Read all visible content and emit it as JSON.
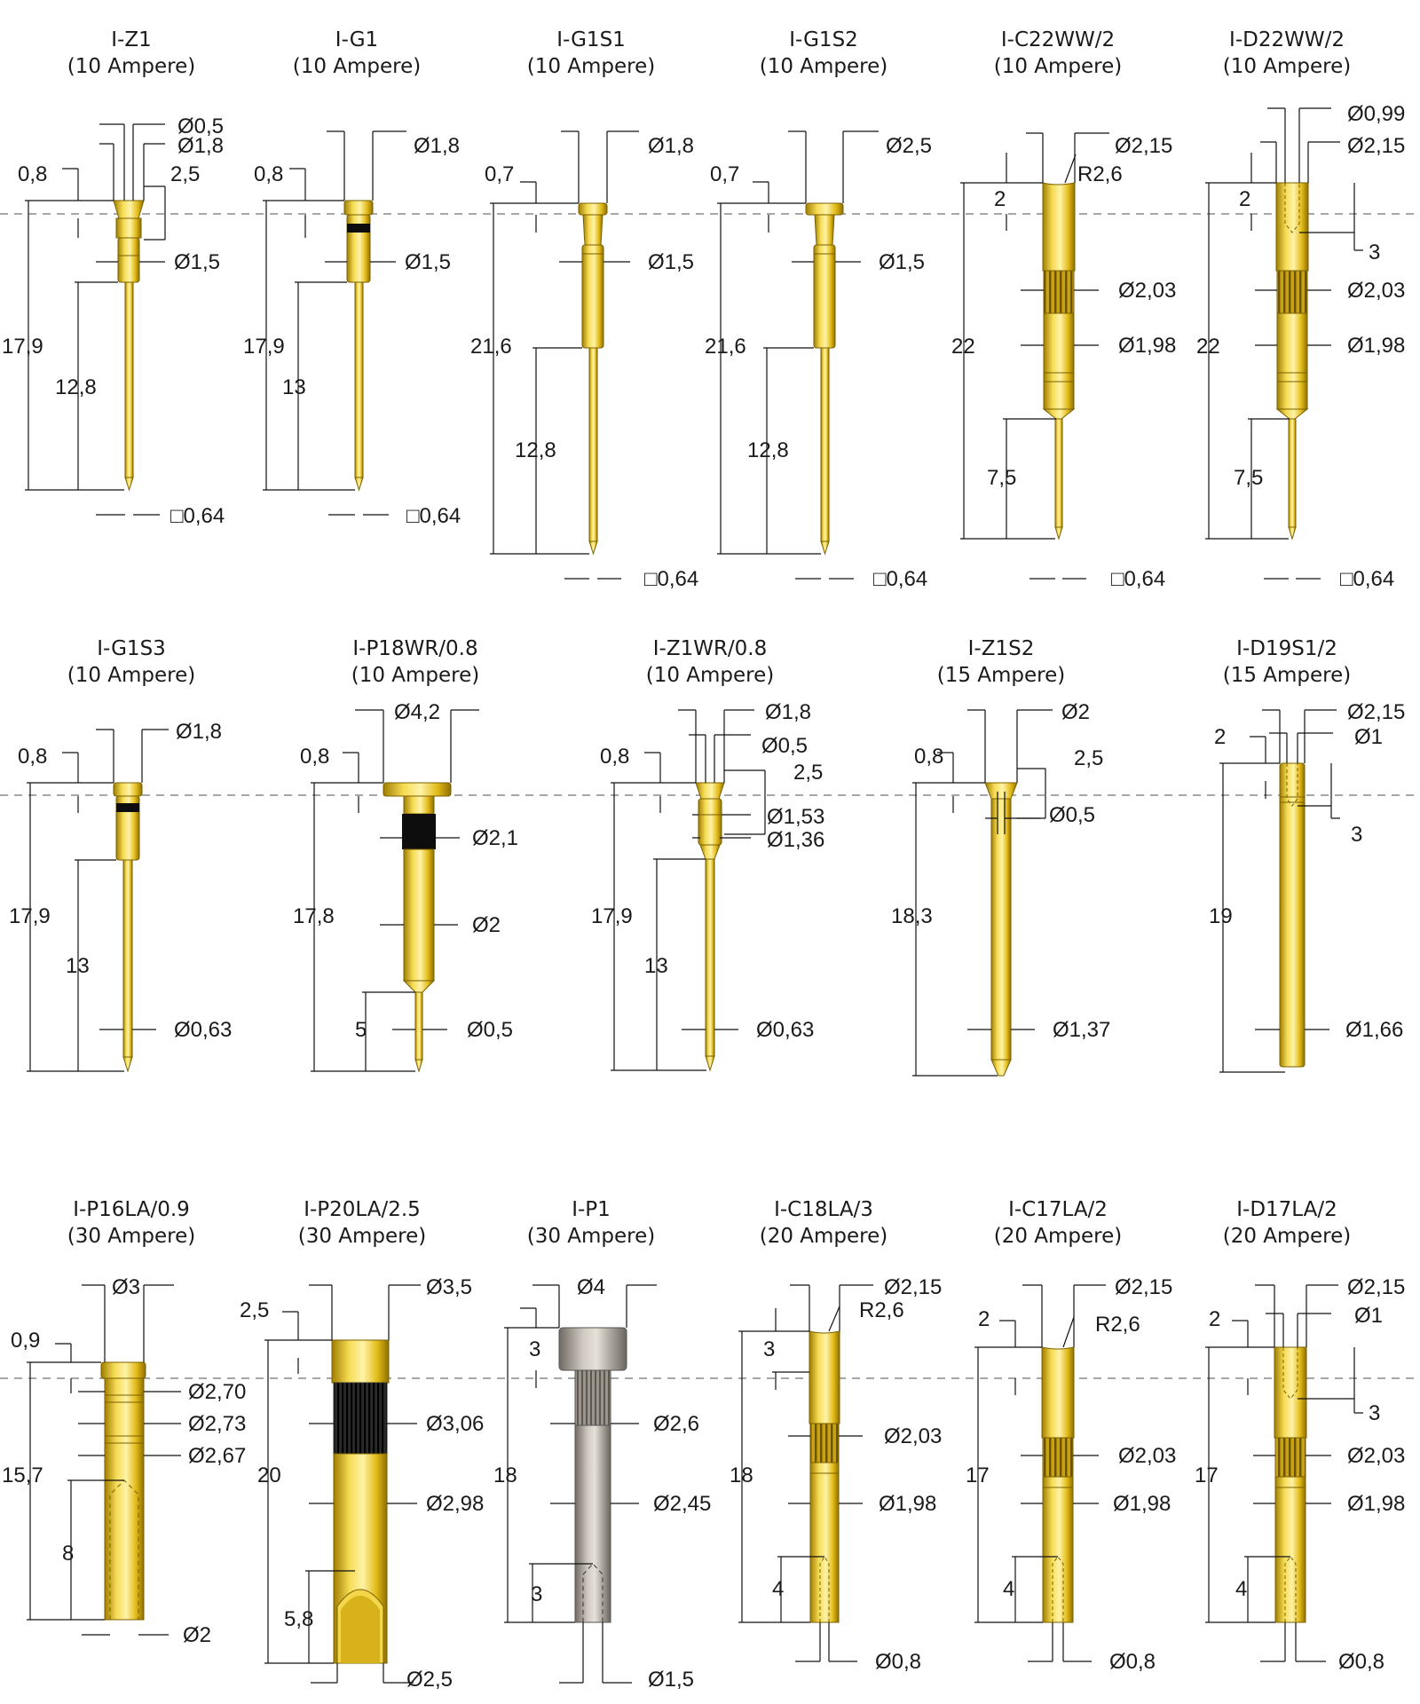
{
  "colors": {
    "gold": "#e7c21d",
    "gold_dark": "#b38d00",
    "silver": "#b3aca3",
    "black_band": "#0d0d0d",
    "ref_line": "#8c8c8c"
  },
  "pins": [
    {
      "title": "I-Z1",
      "rating": "(10 Ampere)",
      "labels": [
        {
          "text": "Ø0,5"
        },
        {
          "text": "Ø1,8"
        },
        {
          "text": "0,8"
        },
        {
          "text": "2,5"
        },
        {
          "text": "Ø1,5"
        },
        {
          "text": "17,9"
        },
        {
          "text": "12,8"
        },
        {
          "text": "□0,64"
        }
      ]
    },
    {
      "title": "I-G1",
      "rating": "(10 Ampere)",
      "labels": [
        {
          "text": "Ø1,8"
        },
        {
          "text": "0,8"
        },
        {
          "text": "Ø1,5"
        },
        {
          "text": "17,9"
        },
        {
          "text": "13"
        },
        {
          "text": "□0,64"
        }
      ]
    },
    {
      "title": "I-G1S1",
      "rating": "(10 Ampere)",
      "labels": [
        {
          "text": "Ø1,8"
        },
        {
          "text": "0,7"
        },
        {
          "text": "Ø1,5"
        },
        {
          "text": "21,6"
        },
        {
          "text": "12,8"
        },
        {
          "text": "□0,64"
        }
      ]
    },
    {
      "title": "I-G1S2",
      "rating": "(10 Ampere)",
      "labels": [
        {
          "text": "Ø2,5"
        },
        {
          "text": "0,7"
        },
        {
          "text": "Ø1,5"
        },
        {
          "text": "21,6"
        },
        {
          "text": "12,8"
        },
        {
          "text": "□0,64"
        }
      ]
    },
    {
      "title": "I-C22WW/2",
      "rating": "(10 Ampere)",
      "labels": [
        {
          "text": "Ø2,15"
        },
        {
          "text": "R2,6"
        },
        {
          "text": "2"
        },
        {
          "text": "Ø2,03"
        },
        {
          "text": "22"
        },
        {
          "text": "Ø1,98"
        },
        {
          "text": "7,5"
        },
        {
          "text": "□0,64"
        }
      ]
    },
    {
      "title": "I-D22WW/2",
      "rating": "(10 Ampere)",
      "labels": [
        {
          "text": "Ø0,99"
        },
        {
          "text": "Ø2,15"
        },
        {
          "text": "2"
        },
        {
          "text": "3"
        },
        {
          "text": "Ø2,03"
        },
        {
          "text": "22"
        },
        {
          "text": "Ø1,98"
        },
        {
          "text": "7,5"
        },
        {
          "text": "□0,64"
        }
      ]
    },
    {
      "title": "I-G1S3",
      "rating": "(10 Ampere)",
      "labels": [
        {
          "text": "Ø1,8"
        },
        {
          "text": "0,8"
        },
        {
          "text": "17,9"
        },
        {
          "text": "13"
        },
        {
          "text": "Ø0,63"
        }
      ]
    },
    {
      "title": "I-P18WR/0.8",
      "rating": "(10 Ampere)",
      "labels": [
        {
          "text": "Ø4,2"
        },
        {
          "text": "0,8"
        },
        {
          "text": "Ø2,1"
        },
        {
          "text": "17,8"
        },
        {
          "text": "Ø2"
        },
        {
          "text": "5"
        },
        {
          "text": "Ø0,5"
        }
      ]
    },
    {
      "title": "I-Z1WR/0.8",
      "rating": "(10 Ampere)",
      "labels": [
        {
          "text": "Ø1,8"
        },
        {
          "text": "Ø0,5"
        },
        {
          "text": "0,8"
        },
        {
          "text": "2,5"
        },
        {
          "text": "Ø1,53"
        },
        {
          "text": "Ø1,36"
        },
        {
          "text": "17,9"
        },
        {
          "text": "13"
        },
        {
          "text": "Ø0,63"
        }
      ]
    },
    {
      "title": "I-Z1S2",
      "rating": "(15 Ampere)",
      "labels": [
        {
          "text": "Ø2"
        },
        {
          "text": "0,8"
        },
        {
          "text": "2,5"
        },
        {
          "text": "Ø0,5"
        },
        {
          "text": "18,3"
        },
        {
          "text": "Ø1,37"
        }
      ]
    },
    {
      "title": "I-D19S1/2",
      "rating": "(15 Ampere)",
      "labels": [
        {
          "text": "Ø2,15"
        },
        {
          "text": "2"
        },
        {
          "text": "Ø1"
        },
        {
          "text": "3"
        },
        {
          "text": "19"
        },
        {
          "text": "Ø1,66"
        }
      ]
    },
    {
      "title": "I-P16LA/0.9",
      "rating": "(30 Ampere)",
      "labels": [
        {
          "text": "Ø3"
        },
        {
          "text": "0,9"
        },
        {
          "text": "Ø2,70"
        },
        {
          "text": "Ø2,73"
        },
        {
          "text": "Ø2,67"
        },
        {
          "text": "15,7"
        },
        {
          "text": "8"
        },
        {
          "text": "Ø2"
        }
      ]
    },
    {
      "title": "I-P20LA/2.5",
      "rating": "(30 Ampere)",
      "labels": [
        {
          "text": "2,5"
        },
        {
          "text": "Ø3,5"
        },
        {
          "text": "Ø3,06"
        },
        {
          "text": "20"
        },
        {
          "text": "Ø2,98"
        },
        {
          "text": "5,8"
        },
        {
          "text": "Ø2,5"
        }
      ]
    },
    {
      "title": "I-P1",
      "rating": "(30 Ampere)",
      "labels": [
        {
          "text": "Ø4"
        },
        {
          "text": "3"
        },
        {
          "text": "Ø2,6"
        },
        {
          "text": "18"
        },
        {
          "text": "Ø2,45"
        },
        {
          "text": "3"
        },
        {
          "text": "Ø1,5"
        }
      ]
    },
    {
      "title": "I-C18LA/3",
      "rating": "(20 Ampere)",
      "labels": [
        {
          "text": "Ø2,15"
        },
        {
          "text": "R2,6"
        },
        {
          "text": "3"
        },
        {
          "text": "Ø2,03"
        },
        {
          "text": "18"
        },
        {
          "text": "Ø1,98"
        },
        {
          "text": "4"
        },
        {
          "text": "Ø0,8"
        }
      ]
    },
    {
      "title": "I-C17LA/2",
      "rating": "(20 Ampere)",
      "labels": [
        {
          "text": "Ø2,15"
        },
        {
          "text": "2"
        },
        {
          "text": "R2,6"
        },
        {
          "text": "Ø2,03"
        },
        {
          "text": "17"
        },
        {
          "text": "Ø1,98"
        },
        {
          "text": "4"
        },
        {
          "text": "Ø0,8"
        }
      ]
    },
    {
      "title": "I-D17LA/2",
      "rating": "(20 Ampere)",
      "labels": [
        {
          "text": "Ø2,15"
        },
        {
          "text": "2"
        },
        {
          "text": "Ø1"
        },
        {
          "text": "3"
        },
        {
          "text": "Ø2,03"
        },
        {
          "text": "17"
        },
        {
          "text": "Ø1,98"
        },
        {
          "text": "4"
        },
        {
          "text": "Ø0,8"
        }
      ]
    }
  ]
}
